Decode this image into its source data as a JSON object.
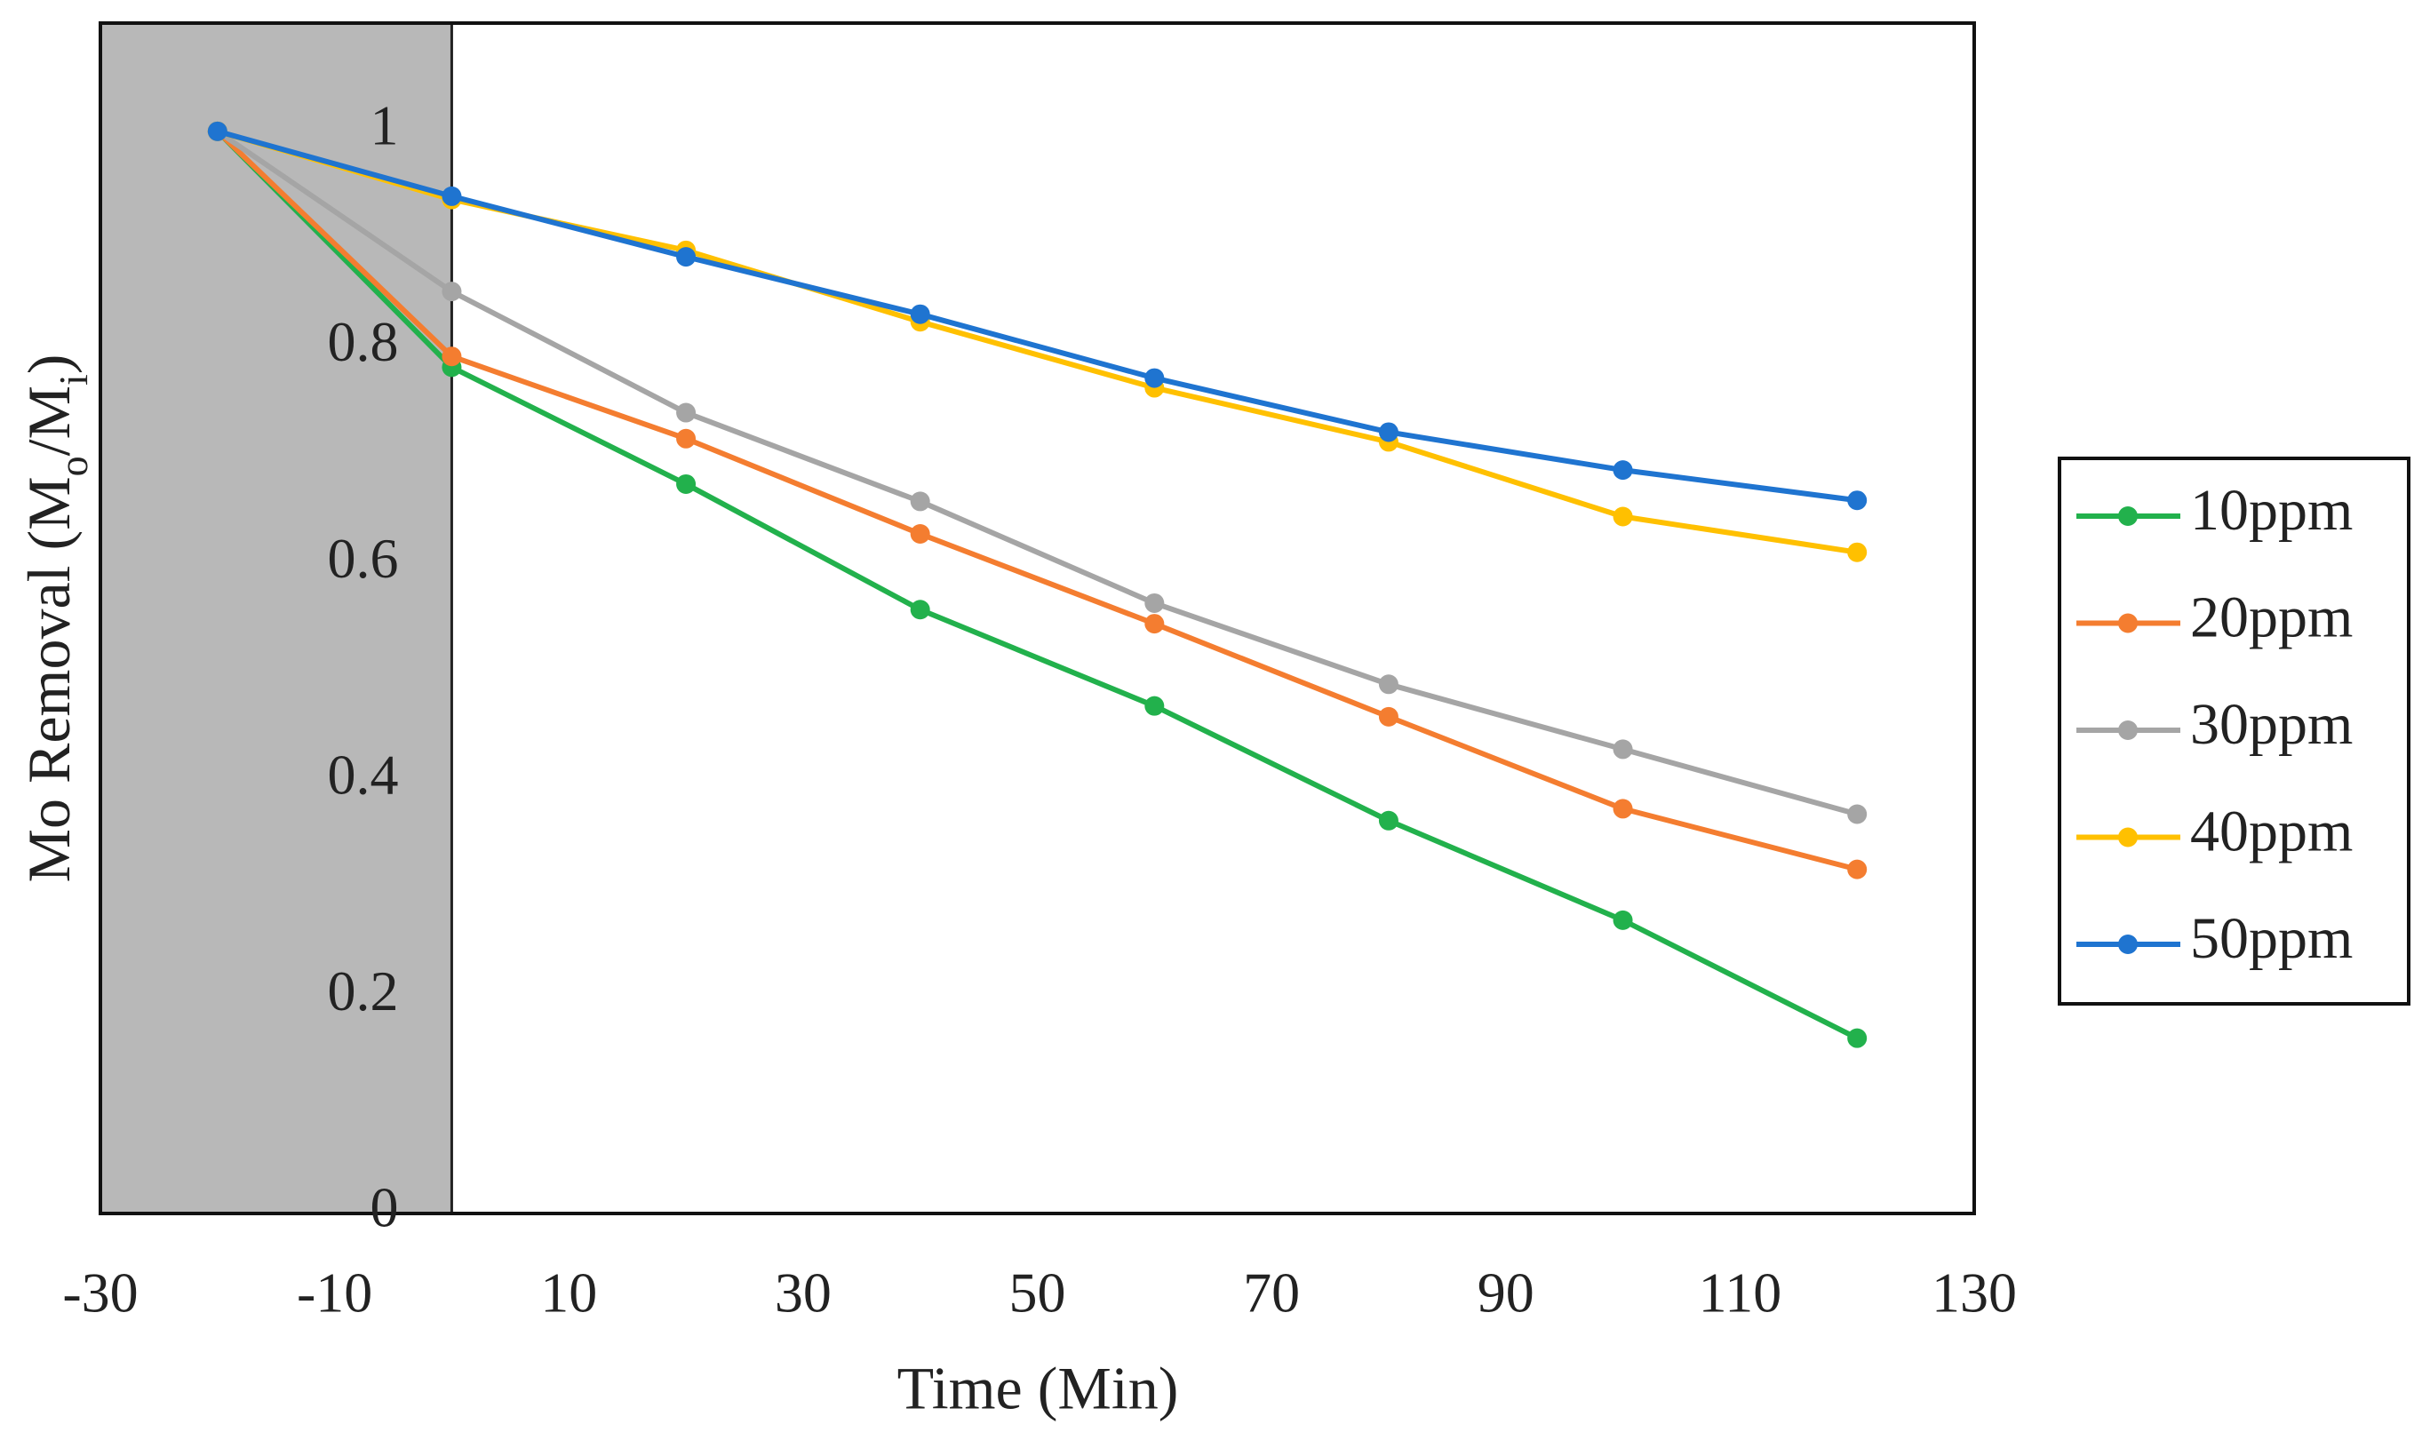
{
  "chart_data": {
    "type": "line",
    "x_label": "Time (Min)",
    "y_label": [
      "Mo Removal (M",
      "o",
      "/M",
      "i",
      ")"
    ],
    "x": [
      -20,
      0,
      20,
      40,
      60,
      80,
      100,
      120
    ],
    "series": [
      {
        "name": "10ppm",
        "color": "#22b14c",
        "values": [
          1,
          0.782,
          0.674,
          0.558,
          0.469,
          0.363,
          0.271,
          0.162
        ]
      },
      {
        "name": "20ppm",
        "color": "#f47d30",
        "values": [
          1,
          0.792,
          0.716,
          0.628,
          0.545,
          0.459,
          0.374,
          0.318
        ]
      },
      {
        "name": "30ppm",
        "color": "#a5a5a5",
        "values": [
          1,
          0.852,
          0.74,
          0.658,
          0.564,
          0.489,
          0.429,
          0.369
        ]
      },
      {
        "name": "40ppm",
        "color": "#ffc000",
        "values": [
          1,
          0.937,
          0.89,
          0.824,
          0.763,
          0.713,
          0.644,
          0.611
        ]
      },
      {
        "name": "50ppm",
        "color": "#1f74d0",
        "values": [
          1,
          0.94,
          0.884,
          0.831,
          0.772,
          0.722,
          0.687,
          0.659
        ]
      }
    ],
    "xlim": [
      -30,
      130
    ],
    "xticks": [
      -30,
      -10,
      10,
      30,
      50,
      70,
      90,
      110,
      130
    ],
    "ylim": [
      0,
      1.1
    ],
    "yticks": [
      0,
      0.2,
      0.4,
      0.6,
      0.8,
      1
    ],
    "shaded_xrange": [
      -30,
      0
    ],
    "shade_color": "#b8b8b8",
    "grid": false,
    "legend": "right"
  }
}
